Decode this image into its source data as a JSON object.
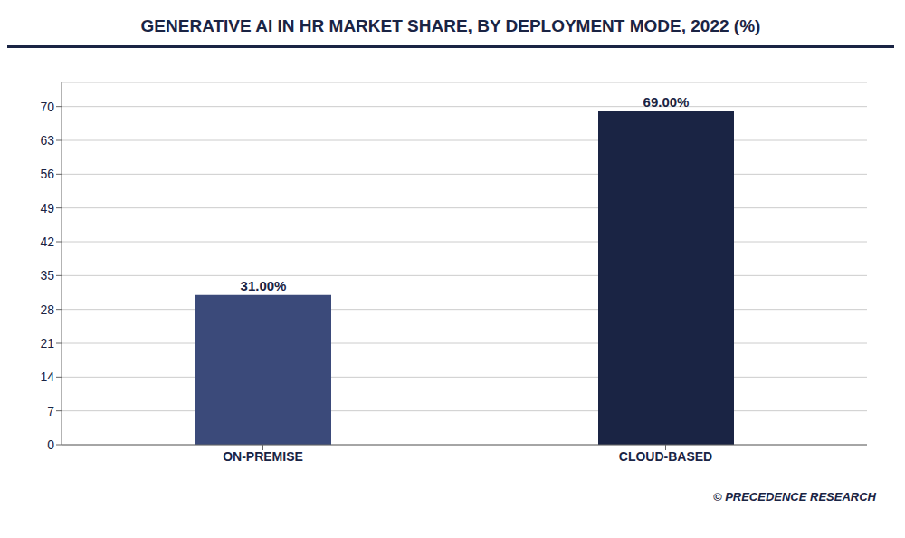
{
  "chart_data": {
    "type": "bar",
    "title": "GENERATIVE AI IN HR MARKET SHARE, BY DEPLOYMENT MODE, 2022 (%)",
    "categories": [
      "ON-PREMISE",
      "CLOUD-BASED"
    ],
    "values": [
      31.0,
      69.0
    ],
    "value_labels": [
      "31.00%",
      "69.00%"
    ],
    "data_labels": true,
    "colors": [
      "#3b4a7a",
      "#1a2444"
    ],
    "ylim": [
      0,
      75
    ],
    "yticks": [
      0,
      7,
      14,
      21,
      28,
      35,
      42,
      49,
      56,
      63,
      70
    ],
    "grid": true,
    "annotations": [
      "© PRECEDENCE RESEARCH"
    ]
  }
}
